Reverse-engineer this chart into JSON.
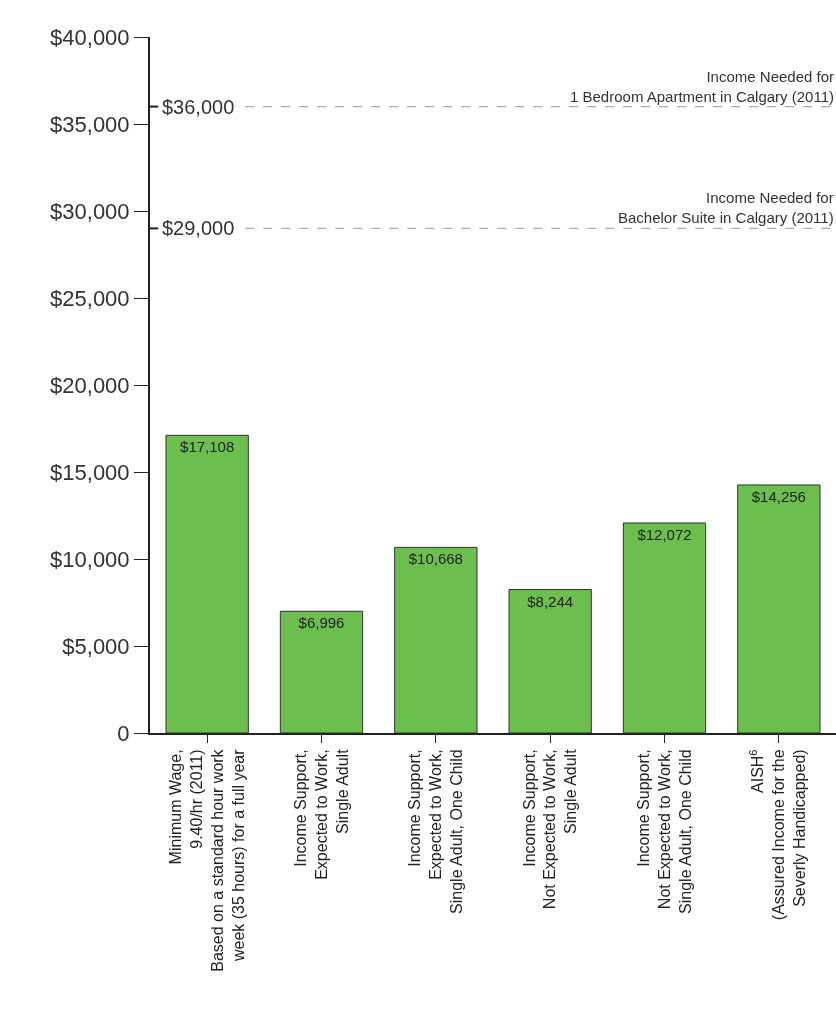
{
  "chart_data": {
    "type": "bar",
    "categories": [
      "Minimum Wage,\n9.40/hr (2011)\nBased on a standard hour work\nweek (35 hours) for a full year",
      "Income Support,\nExpected to Work,\nSingle Adult",
      "Income Support,\nExpected to Work,\nSingle Adult, One Child",
      "Income Support,\nNot Expected to Work,\nSingle Adult",
      "Income Support,\nNot Expected to Work,\nSingle Adult, One Child",
      "AISH$^{6}$\n(Assured Income for the\nSeverly Handicapped)"
    ],
    "values": [
      17108,
      6996,
      10668,
      8244,
      12072,
      14256
    ],
    "value_labels": [
      "$17,108",
      "$6,996",
      "$10,668",
      "$8,244",
      "$12,072",
      "$14,256"
    ],
    "color": "#6cbf4f",
    "ylim": [
      0,
      40000
    ],
    "yticks": [
      {
        "value": 0,
        "label": "0"
      },
      {
        "value": 5000,
        "label": "$5,000"
      },
      {
        "value": 10000,
        "label": "$10,000"
      },
      {
        "value": 15000,
        "label": "$15,000"
      },
      {
        "value": 20000,
        "label": "$20,000"
      },
      {
        "value": 25000,
        "label": "$25,000"
      },
      {
        "value": 30000,
        "label": "$30,000"
      },
      {
        "value": 35000,
        "label": "$35,000"
      },
      {
        "value": 40000,
        "label": "$40,000"
      }
    ],
    "ref_lines": [
      {
        "axis": "y",
        "value": 36000,
        "label": "$36,000",
        "color": "#aaaaaa",
        "line_style": "dashed"
      },
      {
        "axis": "y",
        "value": 29000,
        "label": "$29,000",
        "color": "#aaaaaa",
        "line_style": "dashed"
      }
    ],
    "annotations": [
      {
        "text": "Income Needed for\n1 Bedroom Apartment in Calgary (2011)",
        "y": 36000
      },
      {
        "text": "Income Needed for\nBachelor Suite in Calgary (2011)",
        "y": 29000
      }
    ],
    "grid": false
  }
}
